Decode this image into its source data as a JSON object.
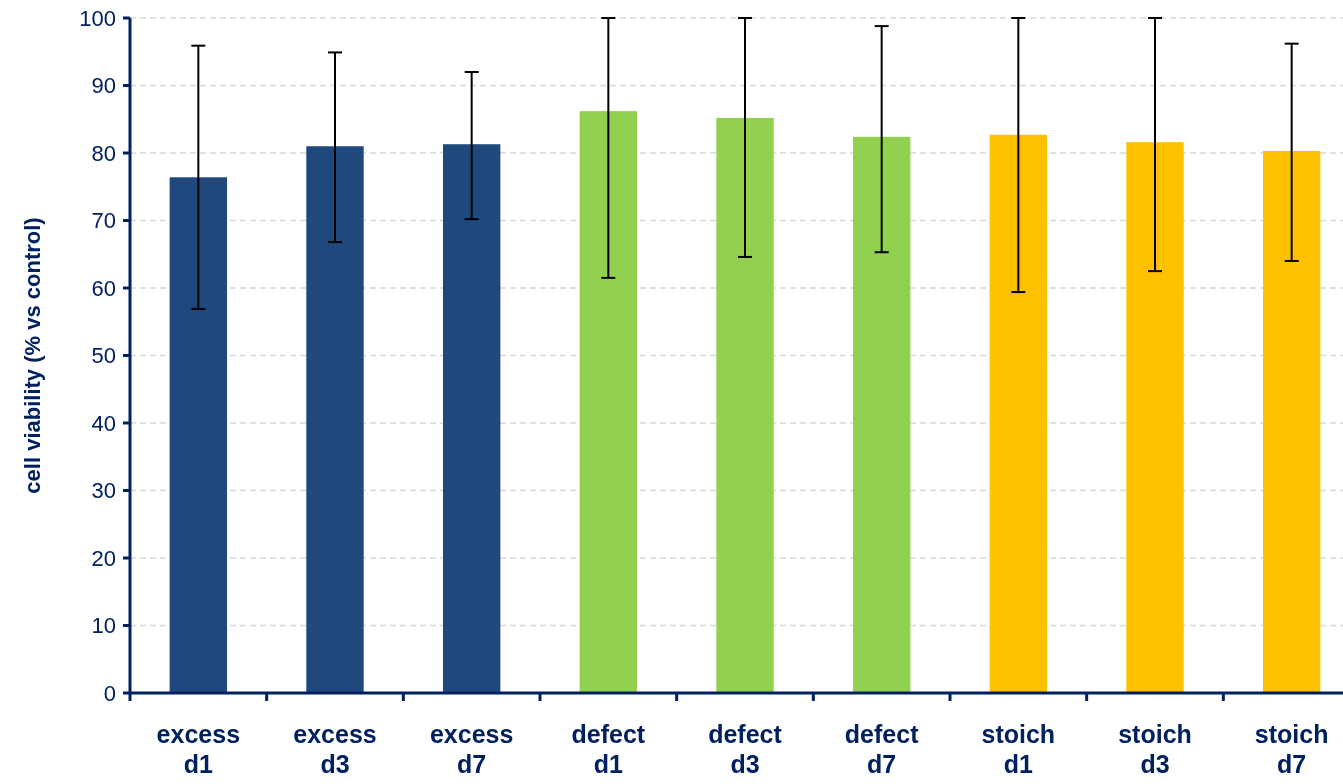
{
  "chart_data": {
    "type": "bar",
    "ylabel": "cell viability (% vs control)",
    "categories": [
      "excess\nd1",
      "excess\nd3",
      "excess\nd7",
      "defect\nd1",
      "defect\nd3",
      "defect\nd7",
      "stoich\nd1",
      "stoich\nd3",
      "stoich\nd7"
    ],
    "values": [
      76.4,
      81.0,
      81.3,
      86.2,
      85.2,
      82.4,
      82.7,
      81.6,
      80.3
    ],
    "errors": [
      [
        56.9,
        95.9
      ],
      [
        66.8,
        94.9
      ],
      [
        70.2,
        92.0
      ],
      [
        61.5,
        100
      ],
      [
        64.6,
        100
      ],
      [
        65.3,
        98.8
      ],
      [
        59.4,
        100
      ],
      [
        62.5,
        100
      ],
      [
        64.0,
        96.2
      ]
    ],
    "colors": [
      "#1f497d",
      "#1f497d",
      "#1f497d",
      "#92d050",
      "#92d050",
      "#92d050",
      "#ffc000",
      "#ffc000",
      "#ffc000"
    ],
    "ylim": [
      0,
      100
    ],
    "yticks": [
      0,
      10,
      20,
      30,
      40,
      50,
      60,
      70,
      80,
      90,
      100
    ],
    "grid": "y"
  }
}
